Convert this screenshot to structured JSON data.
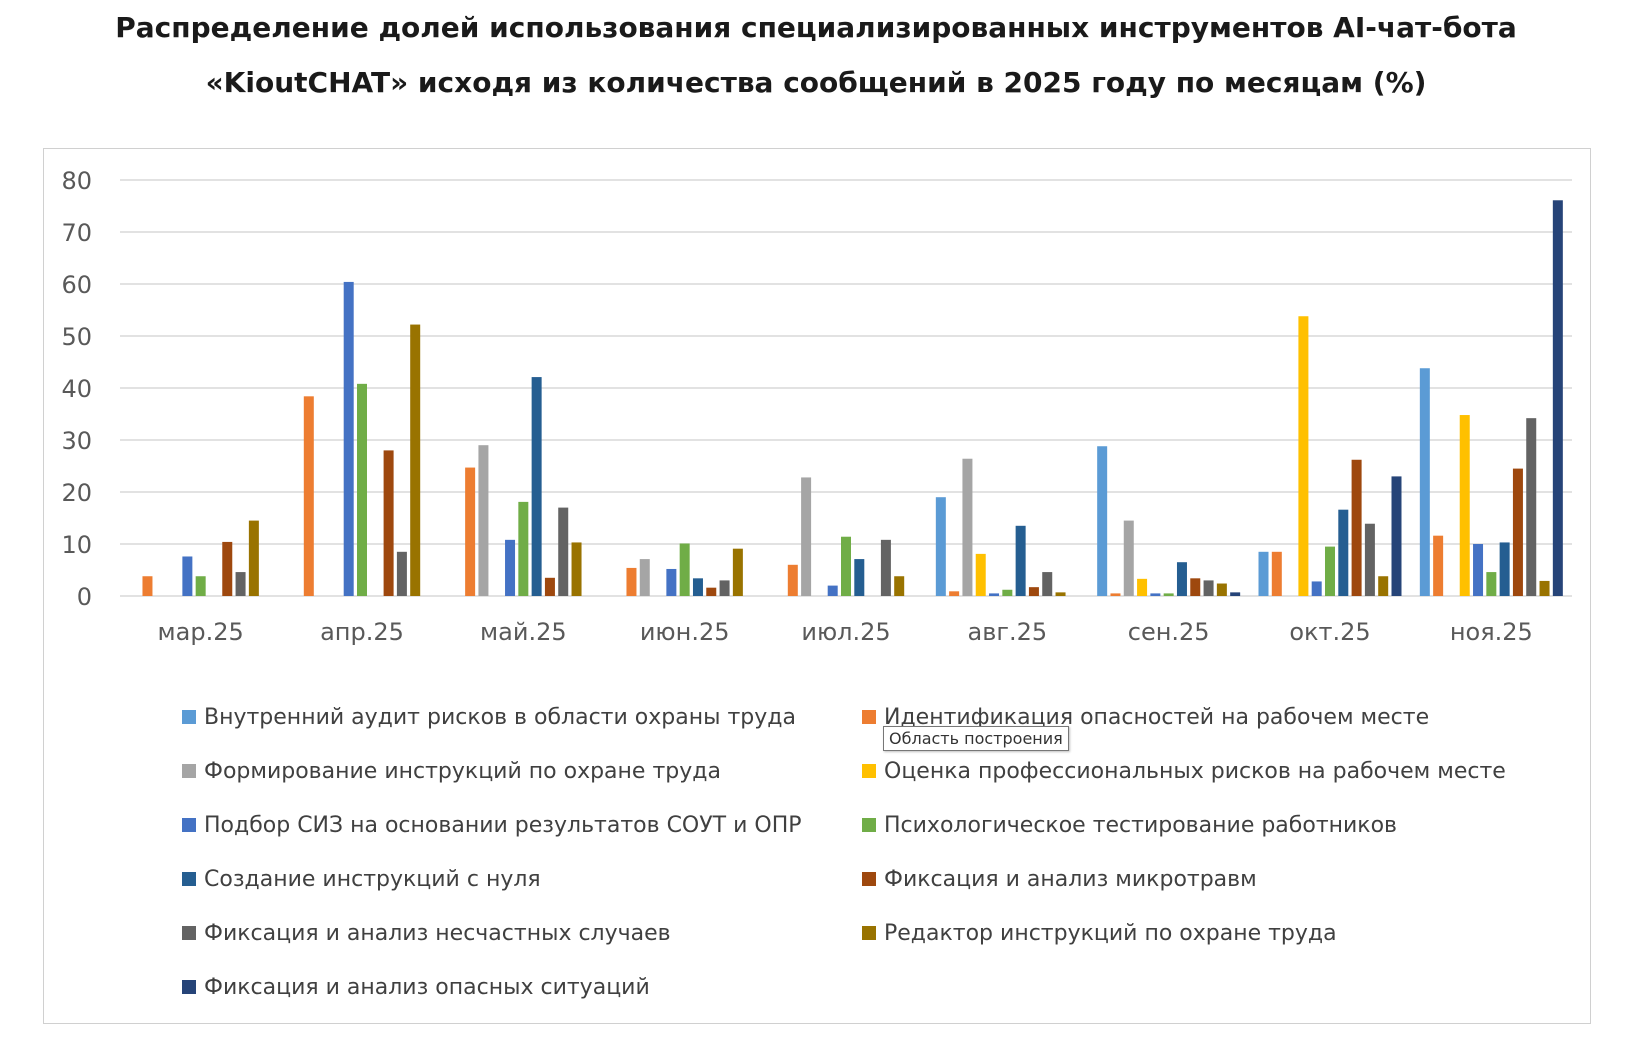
{
  "title_lines": [
    "Распределение долей использования специализированных инструментов AI-чат-бота",
    "«KioutCHAT» исходя из количества сообщений в 2025 году по месяцам (%)"
  ],
  "tooltip": "Область построения",
  "chart_data": {
    "type": "bar",
    "title": "Распределение долей использования специализированных инструментов AI-чат-бота «KioutCHAT» исходя из количества сообщений в 2025 году по месяцам (%)",
    "xlabel": "",
    "ylabel": "",
    "ylim": [
      0,
      80
    ],
    "yticks": [
      0,
      10,
      20,
      30,
      40,
      50,
      60,
      70,
      80
    ],
    "grid": true,
    "legend_position": "bottom",
    "categories": [
      "мар.25",
      "апр.25",
      "май.25",
      "июн.25",
      "июл.25",
      "авг.25",
      "сен.25",
      "окт.25",
      "ноя.25"
    ],
    "series": [
      {
        "name": "Внутренний аудит рисков в области охраны труда",
        "color": "#5B9BD5",
        "values": [
          0,
          0,
          0,
          0,
          0,
          19.0,
          28.8,
          8.5,
          43.8
        ]
      },
      {
        "name": "Идентификация опасностей на рабочем месте",
        "color": "#ED7D31",
        "values": [
          3.8,
          38.4,
          24.7,
          5.4,
          6.0,
          0.9,
          0.5,
          8.5,
          11.6
        ]
      },
      {
        "name": "Формирование инструкций по охране труда",
        "color": "#A5A5A5",
        "values": [
          0,
          0,
          29.0,
          7.1,
          22.8,
          26.4,
          14.5,
          0,
          0
        ]
      },
      {
        "name": "Оценка профессиональных рисков на рабочем месте",
        "color": "#FFC000",
        "values": [
          0,
          0,
          0,
          0,
          0,
          8.1,
          3.3,
          53.8,
          34.8
        ]
      },
      {
        "name": "Подбор СИЗ на основании результатов СОУТ и ОПР",
        "color": "#4472C4",
        "values": [
          7.6,
          60.4,
          10.8,
          5.2,
          2.0,
          0.5,
          0.5,
          2.8,
          10.0
        ]
      },
      {
        "name": "Психологическое тестирование работников",
        "color": "#70AD47",
        "values": [
          3.8,
          40.8,
          18.1,
          10.1,
          11.4,
          1.2,
          0.5,
          9.5,
          4.6
        ]
      },
      {
        "name": "Создание инструкций с нуля",
        "color": "#255E91",
        "values": [
          0,
          0,
          42.1,
          3.4,
          7.1,
          13.5,
          6.5,
          16.6,
          10.3
        ]
      },
      {
        "name": "Фиксация и анализ микротравм",
        "color": "#9E480E",
        "values": [
          10.4,
          28.0,
          3.5,
          1.6,
          0,
          1.7,
          3.4,
          26.2,
          24.5
        ]
      },
      {
        "name": "Фиксация и анализ несчастных случаев",
        "color": "#636363",
        "values": [
          4.6,
          8.5,
          17.0,
          3.0,
          10.8,
          4.6,
          3.0,
          13.9,
          34.2
        ]
      },
      {
        "name": "Редактор инструкций по охране труда",
        "color": "#997300",
        "values": [
          14.5,
          52.2,
          10.3,
          9.1,
          3.8,
          0.7,
          2.4,
          3.8,
          2.9
        ]
      },
      {
        "name": "Фиксация и анализ опасных ситуаций",
        "color": "#264478",
        "values": [
          0,
          0,
          0,
          0,
          0,
          0,
          0.7,
          23.0,
          76.1
        ]
      }
    ]
  }
}
